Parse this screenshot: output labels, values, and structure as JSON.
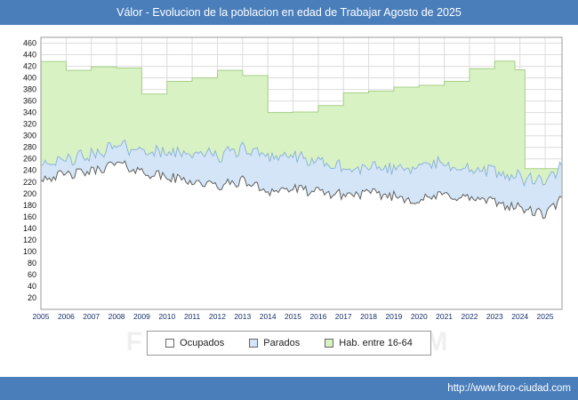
{
  "title_bar": {
    "title": "Válor - Evolucion de la poblacion en edad de Trabajar Agosto de 2025"
  },
  "watermark": "FORO-CIUDAD.COM",
  "legend": {
    "items": [
      {
        "label": "Ocupados",
        "color": "#ffffff"
      },
      {
        "label": "Parados",
        "color": "#d3e5f6"
      },
      {
        "label": "Hab. entre 16-64",
        "color": "#d9f2c4"
      }
    ]
  },
  "footer": {
    "url": "http://www.foro-ciudad.com"
  },
  "chart_data": {
    "type": "area",
    "title": "Válor - Evolucion de la poblacion en edad de Trabajar Agosto de 2025",
    "xlabel": "",
    "ylabel": "",
    "legend_position": "bottom",
    "grid": true,
    "xlim": [
      2005,
      2025.67
    ],
    "ylim": [
      0,
      470
    ],
    "x_end": 2025.63,
    "x_ticks": [
      2005,
      2006,
      2007,
      2008,
      2009,
      2010,
      2011,
      2012,
      2013,
      2014,
      2015,
      2016,
      2017,
      2018,
      2019,
      2020,
      2021,
      2022,
      2023,
      2024,
      2025
    ],
    "y_ticks": [
      20,
      40,
      60,
      80,
      100,
      120,
      140,
      160,
      180,
      200,
      220,
      240,
      260,
      280,
      300,
      320,
      340,
      360,
      380,
      400,
      420,
      440,
      460
    ],
    "note": "Series values are approximate yearly anchors read from the plot; monthly jitter reproduces the jagged monthly record. Hab. entre 16-64 is an annual step series.",
    "series": [
      {
        "name": "Ocupados",
        "render": "jagged-area",
        "fill": "#ffffff",
        "stroke": "#5f5f5f",
        "start_year": 2005,
        "anchor_step_years": 1,
        "values": [
          228,
          232,
          238,
          252,
          238,
          228,
          222,
          212,
          222,
          205,
          208,
          202,
          198,
          200,
          196,
          188,
          198,
          192,
          185,
          175,
          163,
          205
        ],
        "jitter": 18
      },
      {
        "name": "Parados",
        "render": "jagged-area-stacked",
        "stacked_on": "Ocupados",
        "fill": "#d3e5f6",
        "stroke": "#8fb4d9",
        "start_year": 2005,
        "anchor_step_years": 1,
        "values": [
          24,
          26,
          28,
          30,
          38,
          42,
          48,
          52,
          58,
          62,
          55,
          50,
          46,
          42,
          48,
          62,
          52,
          50,
          52,
          52,
          55,
          55
        ],
        "jitter": 12
      },
      {
        "name": "Hab. entre 16-64",
        "render": "step-area",
        "fill": "#d9f2c4",
        "stroke": "#a6cf86",
        "steps": [
          [
            2005,
            428
          ],
          [
            2006,
            413
          ],
          [
            2007,
            419
          ],
          [
            2008,
            417
          ],
          [
            2009,
            372
          ],
          [
            2010,
            394
          ],
          [
            2011,
            400
          ],
          [
            2012,
            413
          ],
          [
            2013,
            404
          ],
          [
            2014,
            340
          ],
          [
            2015,
            341
          ],
          [
            2016,
            352
          ],
          [
            2017,
            374
          ],
          [
            2018,
            377
          ],
          [
            2019,
            384
          ],
          [
            2020,
            387
          ],
          [
            2021,
            394
          ],
          [
            2022,
            416
          ],
          [
            2023,
            429
          ],
          [
            2023.8,
            414
          ],
          [
            2024.2,
            243
          ]
        ]
      }
    ]
  }
}
